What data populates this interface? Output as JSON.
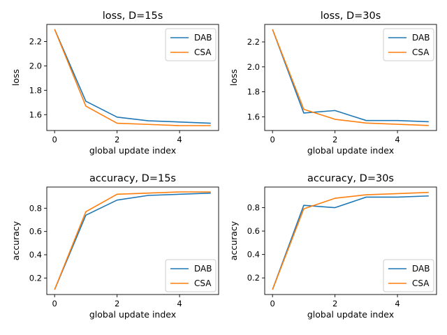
{
  "chart_data": [
    {
      "type": "line",
      "title": "loss, D=15s",
      "xlabel": "global update index",
      "ylabel": "loss",
      "x": [
        0,
        1,
        2,
        3,
        4,
        5
      ],
      "xlim": [
        -0.25,
        5.25
      ],
      "ylim": [
        1.47,
        2.34
      ],
      "xticks": [
        0,
        2,
        4
      ],
      "yticks": [
        1.6,
        1.8,
        2.0,
        2.2
      ],
      "xtick_labels": [
        "0",
        "2",
        "4"
      ],
      "ytick_labels": [
        "1.6",
        "1.8",
        "2.0",
        "2.2"
      ],
      "legend": "upper right",
      "series": [
        {
          "name": "DAB",
          "color": "#1f77b4",
          "values": [
            2.3,
            1.71,
            1.58,
            1.55,
            1.54,
            1.53
          ]
        },
        {
          "name": "CSA",
          "color": "#ff7f0e",
          "values": [
            2.3,
            1.67,
            1.53,
            1.52,
            1.51,
            1.51
          ]
        }
      ]
    },
    {
      "type": "line",
      "title": "loss, D=30s",
      "xlabel": "global update index",
      "ylabel": "loss",
      "x": [
        0,
        1,
        2,
        3,
        4,
        5
      ],
      "xlim": [
        -0.25,
        5.25
      ],
      "ylim": [
        1.49,
        2.34
      ],
      "xticks": [
        0,
        2,
        4
      ],
      "yticks": [
        1.6,
        1.8,
        2.0,
        2.2
      ],
      "xtick_labels": [
        "0",
        "2",
        "4"
      ],
      "ytick_labels": [
        "1.6",
        "1.8",
        "2.0",
        "2.2"
      ],
      "legend": "upper right",
      "series": [
        {
          "name": "DAB",
          "color": "#1f77b4",
          "values": [
            2.3,
            1.63,
            1.65,
            1.57,
            1.57,
            1.56
          ]
        },
        {
          "name": "CSA",
          "color": "#ff7f0e",
          "values": [
            2.3,
            1.66,
            1.58,
            1.55,
            1.54,
            1.53
          ]
        }
      ]
    },
    {
      "type": "line",
      "title": "accuracy, D=15s",
      "xlabel": "global update index",
      "ylabel": "accuracy",
      "x": [
        0,
        1,
        2,
        3,
        4,
        5
      ],
      "xlim": [
        -0.25,
        5.25
      ],
      "ylim": [
        0.058,
        0.982
      ],
      "xticks": [
        0,
        2,
        4
      ],
      "yticks": [
        0.2,
        0.4,
        0.6,
        0.8
      ],
      "xtick_labels": [
        "0",
        "2",
        "4"
      ],
      "ytick_labels": [
        "0.2",
        "0.4",
        "0.6",
        "0.8"
      ],
      "legend": "lower right",
      "series": [
        {
          "name": "DAB",
          "color": "#1f77b4",
          "values": [
            0.1,
            0.74,
            0.87,
            0.91,
            0.92,
            0.93
          ]
        },
        {
          "name": "CSA",
          "color": "#ff7f0e",
          "values": [
            0.1,
            0.77,
            0.92,
            0.93,
            0.94,
            0.94
          ]
        }
      ]
    },
    {
      "type": "line",
      "title": "accuracy, D=30s",
      "xlabel": "global update index",
      "ylabel": "accuracy",
      "x": [
        0,
        1,
        2,
        3,
        4,
        5
      ],
      "xlim": [
        -0.25,
        5.25
      ],
      "ylim": [
        0.058,
        0.976
      ],
      "xticks": [
        0,
        2,
        4
      ],
      "yticks": [
        0.2,
        0.4,
        0.6,
        0.8
      ],
      "xtick_labels": [
        "0",
        "2",
        "4"
      ],
      "ytick_labels": [
        "0.2",
        "0.4",
        "0.6",
        "0.8"
      ],
      "legend": "lower right",
      "series": [
        {
          "name": "DAB",
          "color": "#1f77b4",
          "values": [
            0.1,
            0.82,
            0.8,
            0.89,
            0.89,
            0.9
          ]
        },
        {
          "name": "CSA",
          "color": "#ff7f0e",
          "values": [
            0.1,
            0.79,
            0.88,
            0.91,
            0.92,
            0.93
          ]
        }
      ]
    }
  ]
}
